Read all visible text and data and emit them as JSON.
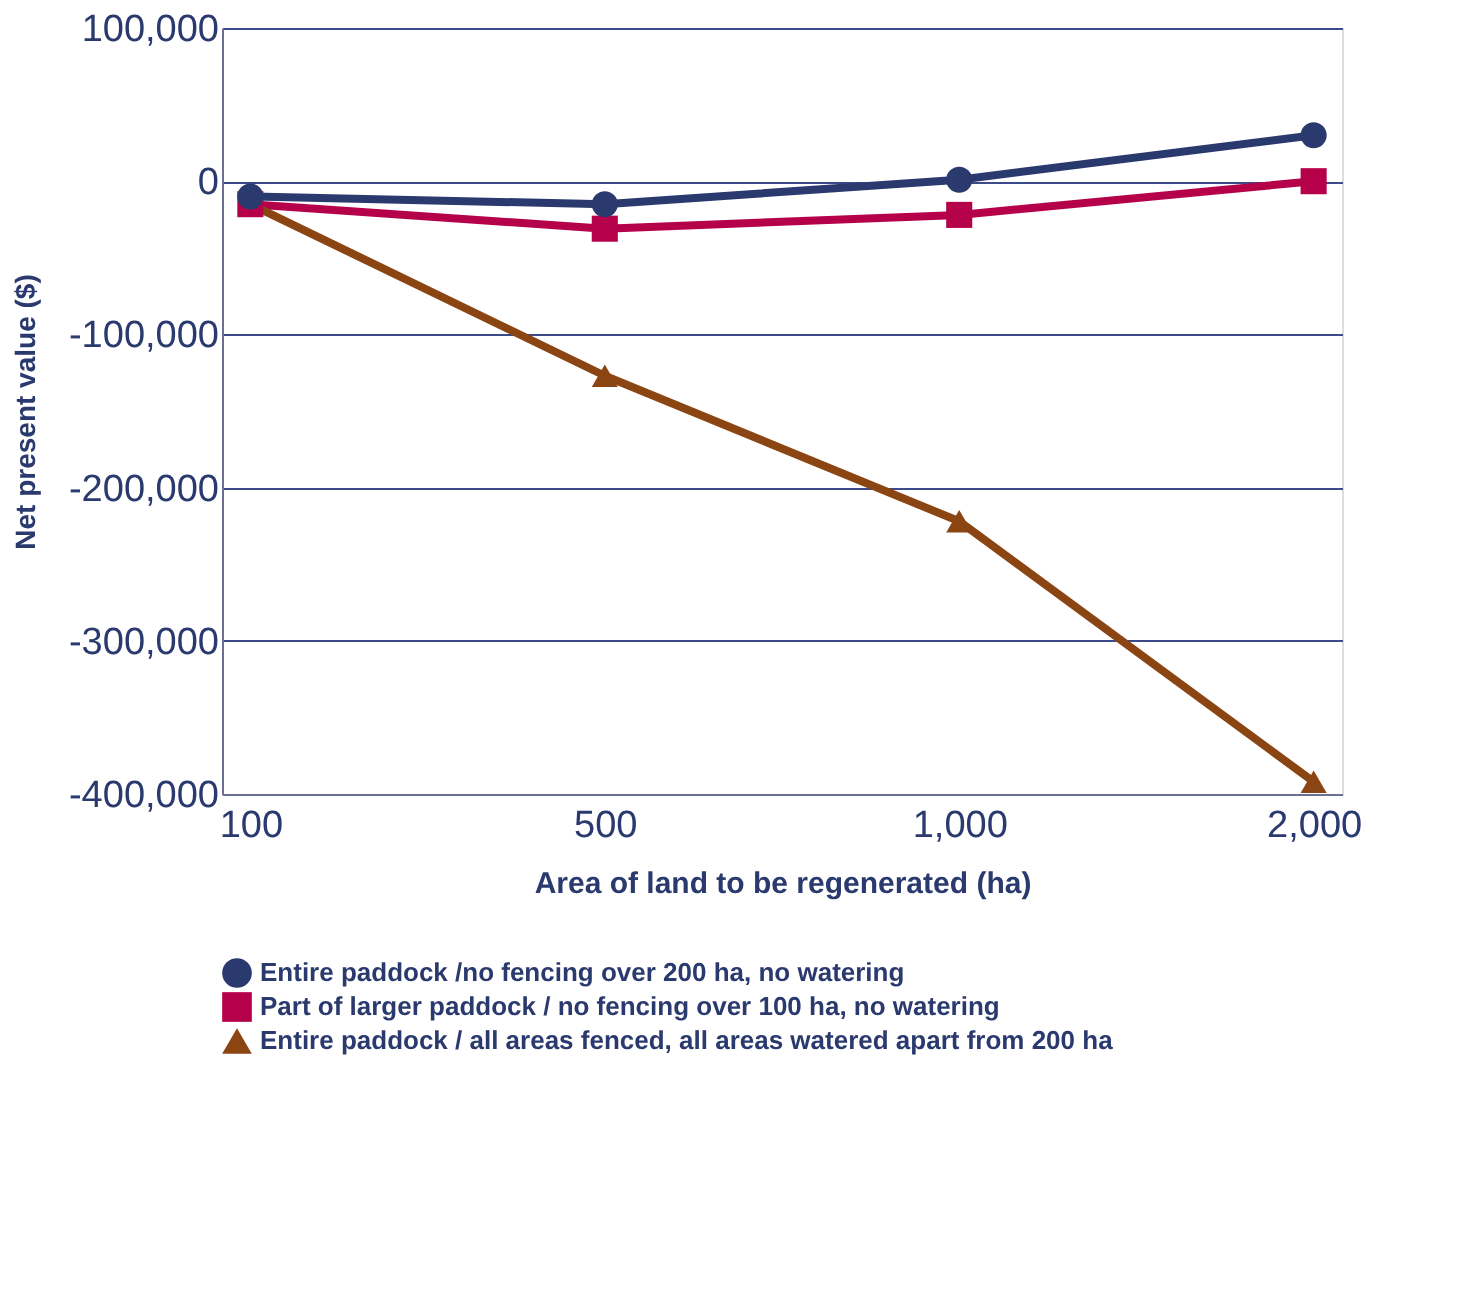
{
  "chart_data": {
    "type": "line",
    "xlabel": "Area of land to be regenerated (ha)",
    "ylabel": "Net present value ($)",
    "categories": [
      "100",
      "500",
      "1,000",
      "2,000"
    ],
    "series": [
      {
        "name": "Entire paddock /no fencing over 200 ha, no watering",
        "color": "#2b3a6e",
        "marker": "circle",
        "values": [
          -10000,
          -15000,
          1000,
          30000
        ]
      },
      {
        "name": "Part of larger paddock / no fencing over 100 ha, no watering",
        "color": "#b5004a",
        "marker": "square",
        "values": [
          -15000,
          -31000,
          -22000,
          0
        ]
      },
      {
        "name": "Entire paddock / all areas fenced, all areas watered apart from 200 ha",
        "color": "#8b4513",
        "marker": "triangle",
        "values": [
          -15000,
          -127000,
          -222000,
          -392000
        ]
      }
    ],
    "ylim": [
      -400000,
      100000
    ],
    "yticks": [
      {
        "value": -400000,
        "label": "-400,000"
      },
      {
        "value": -300000,
        "label": "-300,000"
      },
      {
        "value": -200000,
        "label": "-200,000"
      },
      {
        "value": -100000,
        "label": "-100,000"
      },
      0,
      {
        "value": 100000,
        "label": "100,000"
      }
    ],
    "grid": "y",
    "legend": "bottom",
    "line_style": "solid"
  }
}
